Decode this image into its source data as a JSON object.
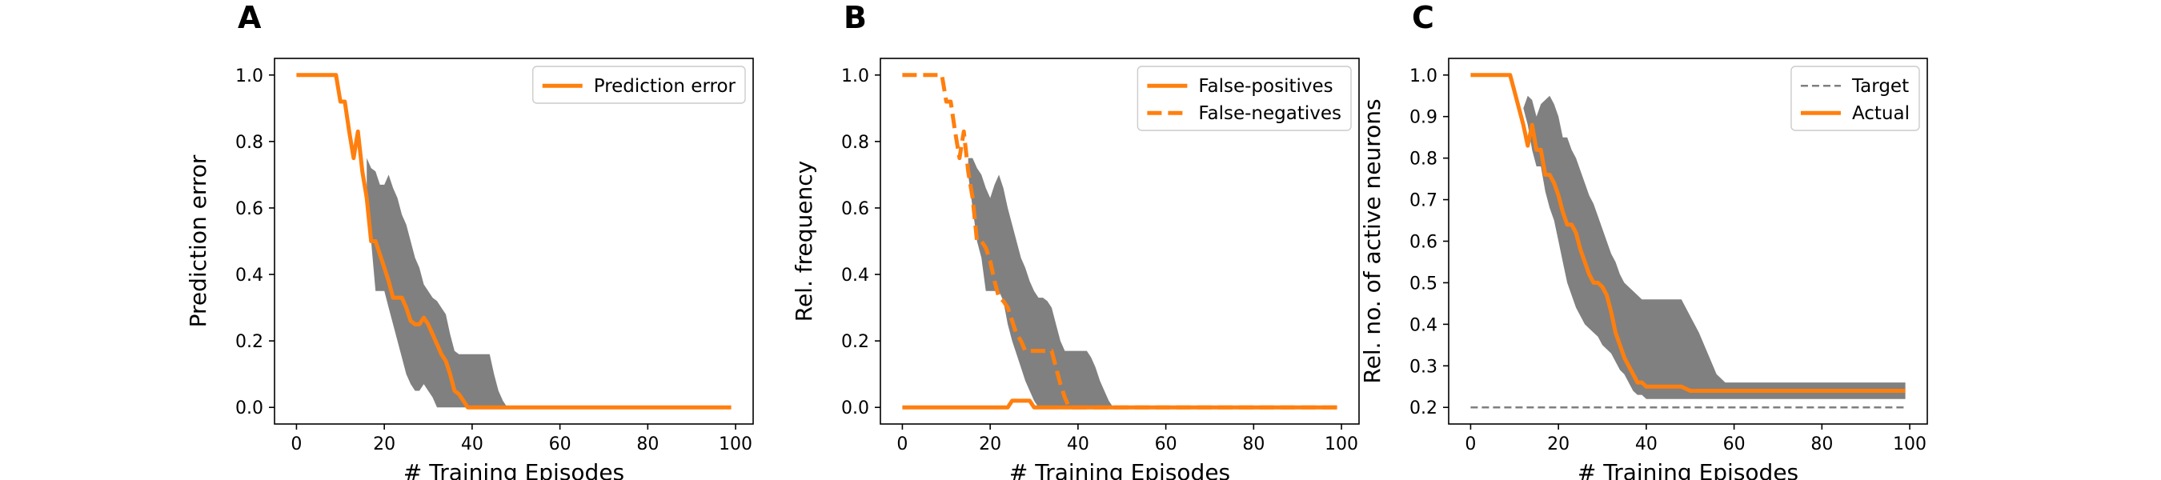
{
  "figure": {
    "panels": [
      {
        "letter": "A"
      },
      {
        "letter": "B"
      },
      {
        "letter": "C"
      }
    ]
  },
  "chart_data": [
    {
      "type": "line",
      "panel": "A",
      "title": "",
      "xlabel": "# Training Episodes",
      "ylabel": "Prediction error",
      "xlim": [
        -5,
        104
      ],
      "ylim": [
        -0.05,
        1.05
      ],
      "xticks": [
        0,
        20,
        40,
        60,
        80,
        100
      ],
      "yticks": [
        0.0,
        0.2,
        0.4,
        0.6,
        0.8,
        1.0
      ],
      "ytick_decimals": 1,
      "legend_position": "upper right",
      "colors": {
        "line": "#ff7f0e",
        "band": "#808080"
      },
      "series": [
        {
          "name": "Prediction error",
          "style": "solid",
          "x": [
            0,
            9,
            10,
            11,
            12,
            13,
            14,
            15,
            16,
            17,
            18,
            19,
            20,
            21,
            22,
            23,
            24,
            25,
            26,
            27,
            28,
            29,
            30,
            31,
            32,
            33,
            34,
            35,
            36,
            37,
            38,
            39,
            40,
            99
          ],
          "y": [
            1.0,
            1.0,
            0.92,
            0.92,
            0.83,
            0.75,
            0.83,
            0.71,
            0.63,
            0.5,
            0.5,
            0.46,
            0.42,
            0.38,
            0.33,
            0.33,
            0.33,
            0.3,
            0.26,
            0.25,
            0.25,
            0.27,
            0.25,
            0.22,
            0.19,
            0.16,
            0.14,
            0.1,
            0.05,
            0.04,
            0.02,
            0.0,
            0.0,
            0.0
          ]
        }
      ],
      "band": {
        "x": [
          16,
          17,
          18,
          19,
          20,
          21,
          22,
          23,
          24,
          25,
          26,
          27,
          28,
          29,
          30,
          31,
          32,
          33,
          34,
          35,
          36,
          37,
          38,
          39,
          40,
          41,
          42,
          43,
          44,
          45,
          46,
          47,
          48
        ],
        "lower": [
          0.6,
          0.5,
          0.35,
          0.35,
          0.35,
          0.3,
          0.25,
          0.2,
          0.15,
          0.1,
          0.07,
          0.05,
          0.05,
          0.07,
          0.05,
          0.03,
          0.0,
          0.0,
          0.0,
          0.0,
          0.0,
          0.0,
          0.0,
          0.0,
          0.0,
          0.0,
          0.0,
          0.0,
          0.0,
          0.0,
          0.0,
          0.0,
          0.0
        ],
        "upper": [
          0.75,
          0.72,
          0.71,
          0.67,
          0.67,
          0.7,
          0.66,
          0.63,
          0.58,
          0.55,
          0.5,
          0.45,
          0.42,
          0.37,
          0.35,
          0.33,
          0.32,
          0.3,
          0.28,
          0.22,
          0.17,
          0.16,
          0.16,
          0.16,
          0.16,
          0.16,
          0.16,
          0.16,
          0.16,
          0.1,
          0.05,
          0.02,
          0.0
        ]
      }
    },
    {
      "type": "line",
      "panel": "B",
      "title": "",
      "xlabel": "# Training Episodes",
      "ylabel": "Rel. frequency",
      "xlim": [
        -5,
        104
      ],
      "ylim": [
        -0.05,
        1.05
      ],
      "xticks": [
        0,
        20,
        40,
        60,
        80,
        100
      ],
      "yticks": [
        0.0,
        0.2,
        0.4,
        0.6,
        0.8,
        1.0
      ],
      "ytick_decimals": 1,
      "legend_position": "upper right",
      "colors": {
        "line": "#ff7f0e",
        "band": "#808080"
      },
      "series": [
        {
          "name": "False-positives",
          "style": "solid",
          "x": [
            0,
            23,
            24,
            25,
            26,
            27,
            28,
            29,
            30,
            31,
            99
          ],
          "y": [
            0.0,
            0.0,
            0.0,
            0.02,
            0.02,
            0.02,
            0.02,
            0.02,
            0.0,
            0.0,
            0.0
          ]
        },
        {
          "name": "False-negatives",
          "style": "dashed",
          "x": [
            0,
            9,
            10,
            11,
            12,
            13,
            14,
            15,
            16,
            17,
            18,
            19,
            20,
            21,
            22,
            23,
            24,
            25,
            26,
            27,
            28,
            29,
            30,
            31,
            32,
            33,
            34,
            35,
            36,
            37,
            38,
            39,
            40,
            99
          ],
          "y": [
            1.0,
            1.0,
            0.92,
            0.92,
            0.83,
            0.75,
            0.83,
            0.71,
            0.63,
            0.5,
            0.5,
            0.48,
            0.44,
            0.38,
            0.33,
            0.32,
            0.3,
            0.26,
            0.22,
            0.2,
            0.17,
            0.17,
            0.17,
            0.17,
            0.17,
            0.17,
            0.17,
            0.12,
            0.07,
            0.03,
            0.0,
            0.0,
            0.0,
            0.0
          ]
        }
      ],
      "band": {
        "x": [
          15,
          16,
          17,
          18,
          19,
          20,
          21,
          22,
          23,
          24,
          25,
          26,
          27,
          28,
          29,
          30,
          31,
          32,
          33,
          34,
          35,
          36,
          37,
          38,
          39,
          40,
          41,
          42,
          43,
          44,
          45,
          46,
          47,
          48
        ],
        "lower": [
          0.7,
          0.6,
          0.5,
          0.45,
          0.35,
          0.35,
          0.35,
          0.35,
          0.32,
          0.25,
          0.2,
          0.16,
          0.12,
          0.08,
          0.05,
          0.02,
          0.0,
          0.0,
          0.0,
          0.0,
          0.0,
          0.0,
          0.0,
          0.0,
          0.0,
          0.0,
          0.0,
          0.0,
          0.0,
          0.0,
          0.0,
          0.0,
          0.0,
          0.0
        ],
        "upper": [
          0.75,
          0.75,
          0.72,
          0.7,
          0.66,
          0.63,
          0.67,
          0.7,
          0.66,
          0.6,
          0.55,
          0.5,
          0.45,
          0.42,
          0.38,
          0.35,
          0.33,
          0.33,
          0.32,
          0.3,
          0.25,
          0.2,
          0.17,
          0.17,
          0.17,
          0.17,
          0.17,
          0.17,
          0.15,
          0.12,
          0.08,
          0.05,
          0.02,
          0.0
        ]
      }
    },
    {
      "type": "line",
      "panel": "C",
      "title": "",
      "xlabel": "# Training Episodes",
      "ylabel": "Rel. no. of active neurons",
      "xlim": [
        -5,
        104
      ],
      "ylim": [
        0.16,
        1.04
      ],
      "xticks": [
        0,
        20,
        40,
        60,
        80,
        100
      ],
      "yticks": [
        0.2,
        0.3,
        0.4,
        0.5,
        0.6,
        0.7,
        0.8,
        0.9,
        1.0
      ],
      "ytick_decimals": 1,
      "legend_position": "upper right",
      "colors": {
        "line": "#ff7f0e",
        "target": "#7f7f7f",
        "band": "#808080"
      },
      "series": [
        {
          "name": "Target",
          "style": "dashed-thin",
          "x": [
            0,
            99
          ],
          "y": [
            0.2,
            0.2
          ]
        },
        {
          "name": "Actual",
          "style": "solid",
          "x": [
            0,
            9,
            10,
            11,
            12,
            13,
            14,
            15,
            16,
            17,
            18,
            19,
            20,
            21,
            22,
            23,
            24,
            25,
            26,
            27,
            28,
            29,
            30,
            31,
            32,
            33,
            34,
            35,
            36,
            37,
            38,
            39,
            40,
            41,
            42,
            44,
            46,
            48,
            50,
            52,
            55,
            60,
            99
          ],
          "y": [
            1.0,
            1.0,
            0.96,
            0.92,
            0.88,
            0.83,
            0.88,
            0.82,
            0.82,
            0.76,
            0.76,
            0.74,
            0.71,
            0.67,
            0.64,
            0.64,
            0.62,
            0.58,
            0.55,
            0.52,
            0.5,
            0.5,
            0.49,
            0.47,
            0.43,
            0.38,
            0.35,
            0.32,
            0.3,
            0.28,
            0.26,
            0.26,
            0.25,
            0.25,
            0.25,
            0.25,
            0.25,
            0.25,
            0.24,
            0.24,
            0.24,
            0.24,
            0.24
          ]
        }
      ],
      "band": {
        "x": [
          12,
          13,
          14,
          15,
          16,
          17,
          18,
          19,
          20,
          21,
          22,
          23,
          24,
          25,
          26,
          27,
          28,
          29,
          30,
          31,
          32,
          33,
          34,
          35,
          36,
          37,
          38,
          39,
          40,
          42,
          44,
          46,
          48,
          50,
          52,
          54,
          56,
          58,
          60,
          99
        ],
        "lower": [
          0.92,
          0.88,
          0.82,
          0.78,
          0.78,
          0.72,
          0.68,
          0.65,
          0.6,
          0.55,
          0.5,
          0.47,
          0.44,
          0.42,
          0.4,
          0.39,
          0.38,
          0.37,
          0.35,
          0.34,
          0.33,
          0.31,
          0.29,
          0.28,
          0.26,
          0.24,
          0.23,
          0.23,
          0.22,
          0.22,
          0.22,
          0.22,
          0.22,
          0.22,
          0.22,
          0.22,
          0.22,
          0.22,
          0.22,
          0.22
        ],
        "upper": [
          0.92,
          0.95,
          0.94,
          0.9,
          0.93,
          0.94,
          0.95,
          0.93,
          0.9,
          0.85,
          0.85,
          0.82,
          0.8,
          0.77,
          0.74,
          0.71,
          0.69,
          0.66,
          0.63,
          0.6,
          0.57,
          0.55,
          0.52,
          0.5,
          0.49,
          0.48,
          0.47,
          0.46,
          0.46,
          0.46,
          0.46,
          0.46,
          0.46,
          0.42,
          0.38,
          0.33,
          0.28,
          0.26,
          0.26,
          0.26
        ]
      }
    }
  ]
}
